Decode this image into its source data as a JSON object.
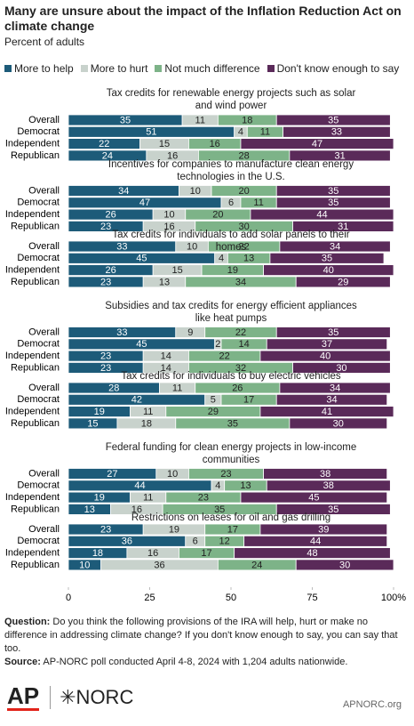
{
  "chart_data": {
    "type": "stacked_bar",
    "title": "Many are unsure about the impact of the Inflation Reduction Act on climate change",
    "subtitle": "Percent of adults",
    "series": [
      {
        "name": "More to help",
        "color": "#1d5b79"
      },
      {
        "name": "More to hurt",
        "color": "#c8d2cc"
      },
      {
        "name": "Not much difference",
        "color": "#7db388"
      },
      {
        "name": "Don't know enough to say",
        "color": "#5a2a59"
      }
    ],
    "xlim": [
      0,
      100
    ],
    "xticks": [
      0,
      25,
      50,
      75,
      {
        "value": 100,
        "label": "100%"
      }
    ],
    "panels": [
      {
        "title": "Tax credits for renewable energy projects such as solar and wind power",
        "categories": [
          "Overall",
          "Democrat",
          "Independent",
          "Republican"
        ],
        "series": [
          {
            "values": [
              35,
              51,
              22,
              24
            ]
          },
          {
            "values": [
              11,
              4,
              15,
              16
            ]
          },
          {
            "values": [
              18,
              11,
              16,
              28
            ]
          },
          {
            "values": [
              35,
              33,
              47,
              31
            ]
          }
        ]
      },
      {
        "title": "Incentives for companies to manufacture clean energy technologies in the U.S.",
        "categories": [
          "Overall",
          "Democrat",
          "Independent",
          "Republican"
        ],
        "series": [
          {
            "values": [
              34,
              47,
              26,
              23
            ]
          },
          {
            "values": [
              10,
              6,
              10,
              16
            ]
          },
          {
            "values": [
              20,
              11,
              20,
              30
            ]
          },
          {
            "values": [
              35,
              35,
              44,
              31
            ]
          }
        ]
      },
      {
        "title": "Tax credits for individuals to add solar panels to their homes",
        "categories": [
          "Overall",
          "Democrat",
          "Independent",
          "Republican"
        ],
        "series": [
          {
            "values": [
              33,
              45,
              26,
              23
            ]
          },
          {
            "values": [
              10,
              4,
              15,
              13
            ]
          },
          {
            "values": [
              22,
              13,
              19,
              34
            ]
          },
          {
            "values": [
              34,
              35,
              40,
              29
            ]
          }
        ]
      },
      {
        "title": "Subsidies and tax credits for energy efficient appliances like heat pumps",
        "categories": [
          "Overall",
          "Democrat",
          "Independent",
          "Republican"
        ],
        "series": [
          {
            "values": [
              33,
              45,
              23,
              23
            ]
          },
          {
            "values": [
              9,
              2,
              14,
              14
            ]
          },
          {
            "values": [
              22,
              14,
              22,
              32
            ]
          },
          {
            "values": [
              35,
              37,
              40,
              30
            ]
          }
        ]
      },
      {
        "title": "Tax credits for individuals to buy electric vehicles",
        "categories": [
          "Overall",
          "Democrat",
          "Independent",
          "Republican"
        ],
        "series": [
          {
            "values": [
              28,
              42,
              19,
              15
            ]
          },
          {
            "values": [
              11,
              5,
              11,
              18
            ]
          },
          {
            "values": [
              26,
              17,
              29,
              35
            ]
          },
          {
            "values": [
              34,
              34,
              41,
              30
            ]
          }
        ]
      },
      {
        "title": "Federal funding for clean energy projects in low-income communities",
        "categories": [
          "Overall",
          "Democrat",
          "Independent",
          "Republican"
        ],
        "series": [
          {
            "values": [
              27,
              44,
              19,
              13
            ]
          },
          {
            "values": [
              10,
              4,
              11,
              16
            ]
          },
          {
            "values": [
              23,
              13,
              23,
              35
            ]
          },
          {
            "values": [
              38,
              38,
              45,
              35
            ]
          }
        ]
      },
      {
        "title": "Restrictions on leases for oil and gas drilling",
        "categories": [
          "Overall",
          "Democrat",
          "Independent",
          "Republican"
        ],
        "series": [
          {
            "values": [
              23,
              36,
              18,
              10
            ]
          },
          {
            "values": [
              19,
              6,
              16,
              36
            ]
          },
          {
            "values": [
              17,
              12,
              17,
              24
            ]
          },
          {
            "values": [
              39,
              44,
              48,
              30
            ]
          }
        ]
      }
    ]
  },
  "notes": {
    "question_label": "Question:",
    "question": "Do you think the following provisions of the IRA will help, hurt or make no difference in addressing climate change? If you don't know enough to say, you can say that too.",
    "source_label": "Source:",
    "source": "AP-NORC poll conducted April 4-8, 2024 with 1,204 adults nationwide."
  },
  "footer": {
    "logo_ap": "AP",
    "logo_norc": "✳NORC",
    "site": "APNORC.org"
  }
}
